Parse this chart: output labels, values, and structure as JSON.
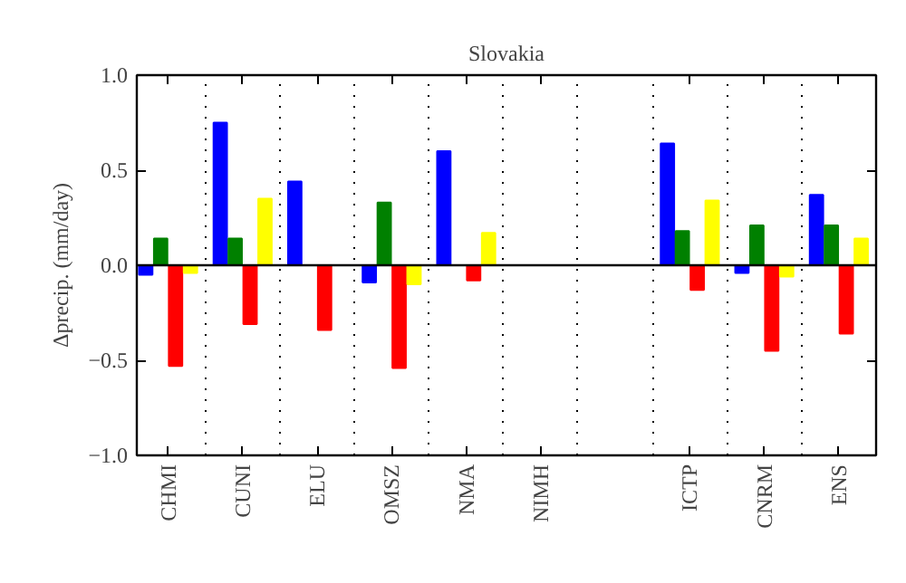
{
  "chart_data": {
    "type": "bar",
    "title": "Slovakia",
    "ylabel": "Δprecip. (mm/day)",
    "categories": [
      "CHMI",
      "CUNI",
      "ELU",
      "OMSZ",
      "NMA",
      "NIMH",
      null,
      "ICTP",
      "CNRM",
      "ENS"
    ],
    "series": [
      {
        "color": "#0000ff",
        "values": [
          -0.05,
          0.75,
          0.44,
          -0.09,
          0.6,
          null,
          null,
          0.64,
          -0.04,
          0.37
        ]
      },
      {
        "color": "#008000",
        "values": [
          0.14,
          0.14,
          null,
          0.33,
          null,
          null,
          null,
          0.18,
          0.21,
          0.21
        ]
      },
      {
        "color": "#ff0000",
        "values": [
          -0.53,
          -0.31,
          -0.34,
          -0.54,
          -0.08,
          null,
          null,
          -0.13,
          -0.45,
          -0.36
        ]
      },
      {
        "color": "#ffff00",
        "values": [
          -0.04,
          0.35,
          null,
          -0.1,
          0.17,
          null,
          null,
          0.34,
          -0.06,
          0.14
        ]
      }
    ],
    "ylim": [
      -1.0,
      1.0
    ],
    "yticks": [
      {
        "value": -1.0,
        "label": "−1.0"
      },
      {
        "value": -0.5,
        "label": "−0.5"
      },
      {
        "value": 0,
        "label": "0.0"
      },
      {
        "value": 0.5,
        "label": "0.5"
      },
      {
        "value": 1.0,
        "label": "1.0"
      }
    ],
    "ref_lines": [
      {
        "axis": "y",
        "value": 0,
        "color": "#000000",
        "line_style": "solid"
      }
    ],
    "grid": "x"
  }
}
